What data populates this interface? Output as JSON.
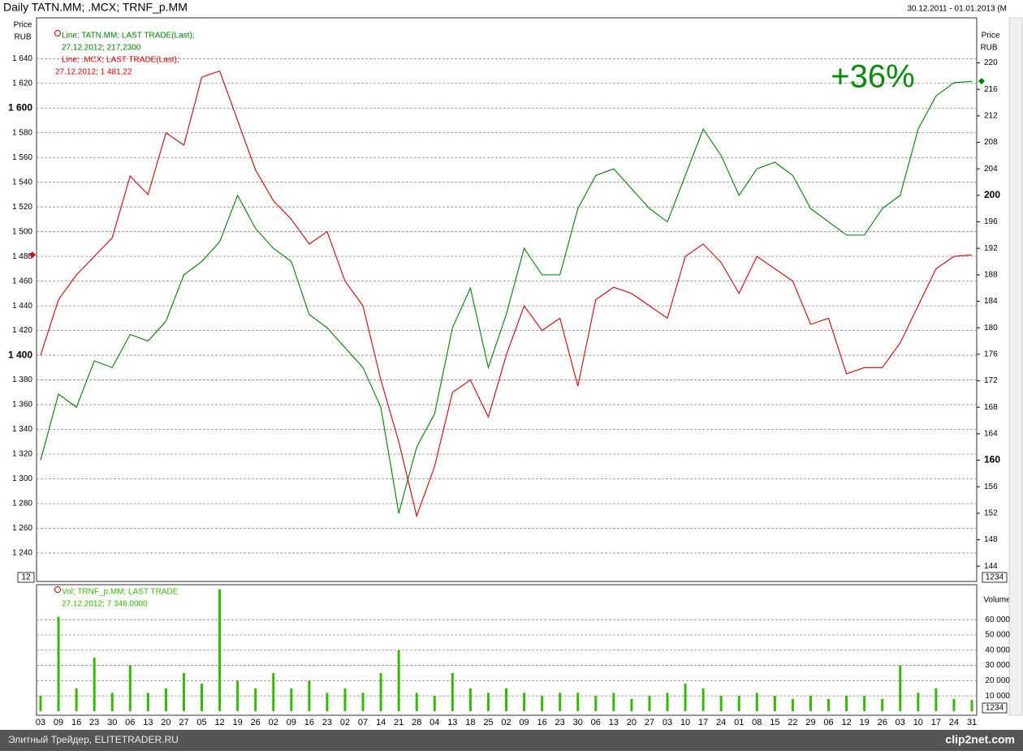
{
  "chart_data": [
    {
      "type": "line",
      "title": "Daily TATN.MM; .MCX; TRNF_p.MM",
      "date_range": "30.12.2011 - 01.01.2013 (M",
      "y_label": [
        "Price",
        "RUB"
      ],
      "y2_label": [
        "Price",
        "RUB"
      ],
      "annotation": "+36%",
      "categories": [
        "03",
        "09",
        "16",
        "23",
        "30",
        "06",
        "13",
        "20",
        "27",
        "05",
        "12",
        "19",
        "26",
        "02",
        "09",
        "16",
        "23",
        "02",
        "07",
        "14",
        "21",
        "28",
        "04",
        "13",
        "18",
        "25",
        "02",
        "09",
        "16",
        "23",
        "30",
        "06",
        "13",
        "20",
        "27",
        "03",
        "10",
        "17",
        "24",
        "01",
        "08",
        "15",
        "22",
        "29",
        "06",
        "12",
        "19",
        "26",
        "03",
        "10",
        "17",
        "24",
        "31"
      ],
      "ylim": [
        1217,
        1673
      ],
      "yticks": [
        {
          "value": 1240,
          "label": "1 240"
        },
        {
          "value": 1260,
          "label": "1 260"
        },
        {
          "value": 1280,
          "label": "1 280"
        },
        {
          "value": 1300,
          "label": "1 300"
        },
        {
          "value": 1320,
          "label": "1 320"
        },
        {
          "value": 1340,
          "label": "1 340"
        },
        {
          "value": 1360,
          "label": "1 360"
        },
        {
          "value": 1380,
          "label": "1 380"
        },
        {
          "value": 1400,
          "label": "1 400"
        },
        {
          "value": 1420,
          "label": "1 420"
        },
        {
          "value": 1440,
          "label": "1 440"
        },
        {
          "value": 1460,
          "label": "1 460"
        },
        {
          "value": 1480,
          "label": "1 480"
        },
        {
          "value": 1500,
          "label": "1 500"
        },
        {
          "value": 1520,
          "label": "1 520"
        },
        {
          "value": 1540,
          "label": "1 540"
        },
        {
          "value": 1560,
          "label": "1 560"
        },
        {
          "value": 1580,
          "label": "1 580"
        },
        {
          "value": 1600,
          "label": "1 600"
        },
        {
          "value": 1620,
          "label": "1 620"
        },
        {
          "value": 1640,
          "label": "1 640"
        }
      ],
      "y2lim": [
        141.7,
        226.8
      ],
      "y2ticks": [
        144,
        148,
        152,
        156,
        160,
        164,
        168,
        172,
        176,
        180,
        184,
        188,
        192,
        196,
        200,
        204,
        208,
        212,
        216,
        220
      ],
      "grid": true,
      "series": [
        {
          "name": "Line; TATN.MM; LAST TRADE(Last);",
          "legend_detail": "27.12.2012; 217,2300",
          "color": "#008000",
          "axis": "y2",
          "values": [
            160,
            170,
            168,
            175,
            174,
            179,
            178,
            181,
            188,
            190,
            193,
            200,
            195,
            192,
            190,
            182,
            180,
            177,
            174,
            168,
            152,
            162,
            167,
            180,
            186,
            174,
            182,
            192,
            188,
            188,
            198,
            203,
            204,
            201,
            198,
            196,
            203,
            210,
            206,
            200,
            204,
            205,
            203,
            198,
            196,
            194,
            194,
            198,
            200,
            210,
            215,
            217,
            217.23
          ]
        },
        {
          "name": "Line; .MCX; LAST TRADE(Last);",
          "legend_detail": "27.12.2012; 1 481,22",
          "color": "#dd0000",
          "axis": "y",
          "values": [
            1400,
            1445,
            1465,
            1480,
            1495,
            1545,
            1530,
            1580,
            1570,
            1625,
            1630,
            1590,
            1550,
            1525,
            1510,
            1490,
            1500,
            1460,
            1440,
            1380,
            1330,
            1270,
            1310,
            1370,
            1380,
            1350,
            1400,
            1440,
            1420,
            1430,
            1375,
            1445,
            1455,
            1450,
            1440,
            1430,
            1480,
            1490,
            1475,
            1450,
            1480,
            1470,
            1460,
            1425,
            1430,
            1385,
            1390,
            1390,
            1410,
            1440,
            1470,
            1480,
            1481.22
          ]
        }
      ],
      "left_box": "12",
      "right_box": "1234"
    },
    {
      "type": "bar",
      "y_label": "Volume",
      "ylim": [
        -2700,
        83000
      ],
      "yticks": [
        {
          "value": 10000,
          "label": "10 000"
        },
        {
          "value": 20000,
          "label": "20 000"
        },
        {
          "value": 30000,
          "label": "30 000"
        },
        {
          "value": 40000,
          "label": "40 000"
        },
        {
          "value": 50000,
          "label": "50 000"
        },
        {
          "value": 60000,
          "label": "60 000"
        }
      ],
      "grid": true,
      "series": [
        {
          "name": "Vol; TRNF_p.MM; LAST TRADE",
          "legend_detail": "27.12.2012; 7 346,0000",
          "color": "#33bb00",
          "values": [
            10000,
            62000,
            15000,
            35000,
            12000,
            30000,
            12000,
            15000,
            25000,
            18000,
            80000,
            20000,
            15000,
            25000,
            15000,
            20000,
            12000,
            15000,
            12000,
            25000,
            40000,
            12000,
            10000,
            25000,
            15000,
            12000,
            15000,
            12000,
            10000,
            12000,
            12000,
            10000,
            12000,
            8000,
            10000,
            12000,
            18000,
            15000,
            10000,
            10000,
            12000,
            10000,
            8000,
            10000,
            8000,
            10000,
            10000,
            8000,
            30000,
            12000,
            15000,
            8000,
            7346
          ]
        }
      ],
      "right_box": "1234"
    }
  ],
  "footer": {
    "left": "Элитный Трейдер, ELITETRADER.RU",
    "right": "clip2net.com"
  }
}
